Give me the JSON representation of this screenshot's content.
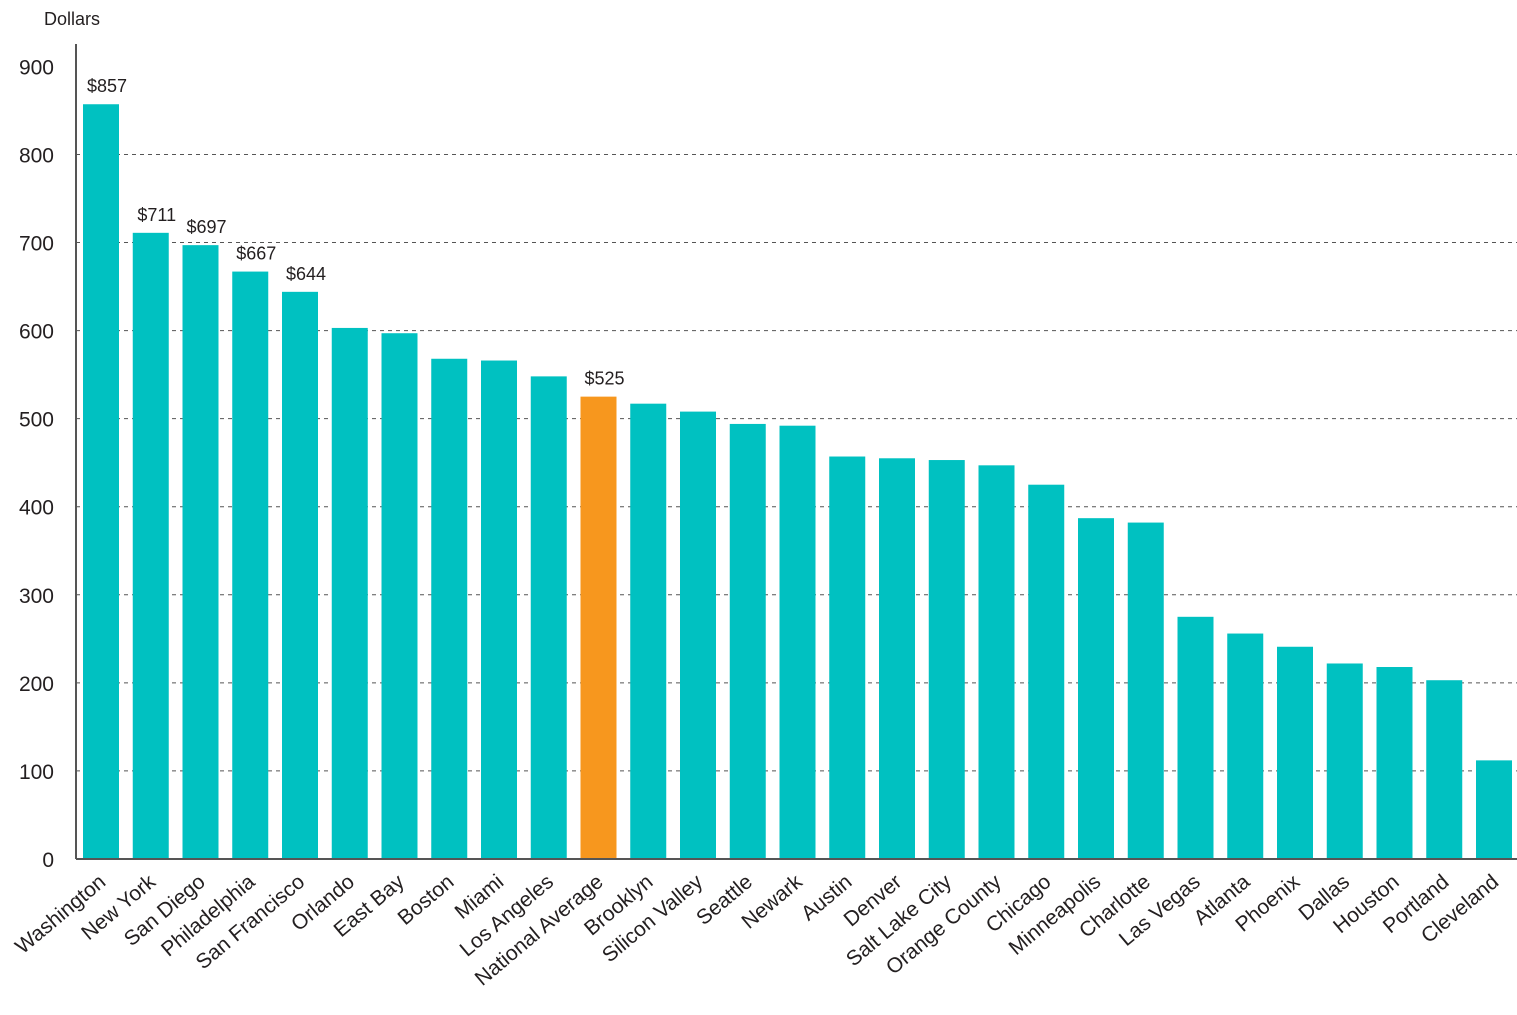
{
  "chart_data": {
    "type": "bar",
    "ylabel": "Dollars",
    "ylim": [
      0,
      900
    ],
    "yticks": [
      0,
      100,
      200,
      300,
      400,
      500,
      600,
      700,
      800,
      900
    ],
    "grid": "horizontal dashed",
    "categories": [
      "Washington",
      "New York",
      "San Diego",
      "Philadelphia",
      "San Francisco",
      "Orlando",
      "East Bay",
      "Boston",
      "Miami",
      "Los Angeles",
      "National Average",
      "Brooklyn",
      "Silicon Valley",
      "Seattle",
      "Newark",
      "Austin",
      "Denver",
      "Salt Lake City",
      "Orange County",
      "Chicago",
      "Minneapolis",
      "Charlotte",
      "Las Vegas",
      "Atlanta",
      "Phoenix",
      "Dallas",
      "Houston",
      "Portland",
      "Cleveland"
    ],
    "values": [
      857,
      711,
      697,
      667,
      644,
      603,
      597,
      568,
      566,
      548,
      525,
      517,
      508,
      494,
      492,
      457,
      455,
      453,
      447,
      425,
      387,
      382,
      275,
      256,
      241,
      222,
      218,
      203,
      112
    ],
    "data_labels": {
      "0": "$857",
      "1": "$711",
      "2": "$697",
      "3": "$667",
      "4": "$644",
      "10": "$525"
    },
    "highlight_index": 10,
    "colors": {
      "bar": "#00c1c1",
      "highlight": "#f7971e",
      "axis": "#555555",
      "grid": "#555555",
      "text": "#231f20"
    }
  }
}
